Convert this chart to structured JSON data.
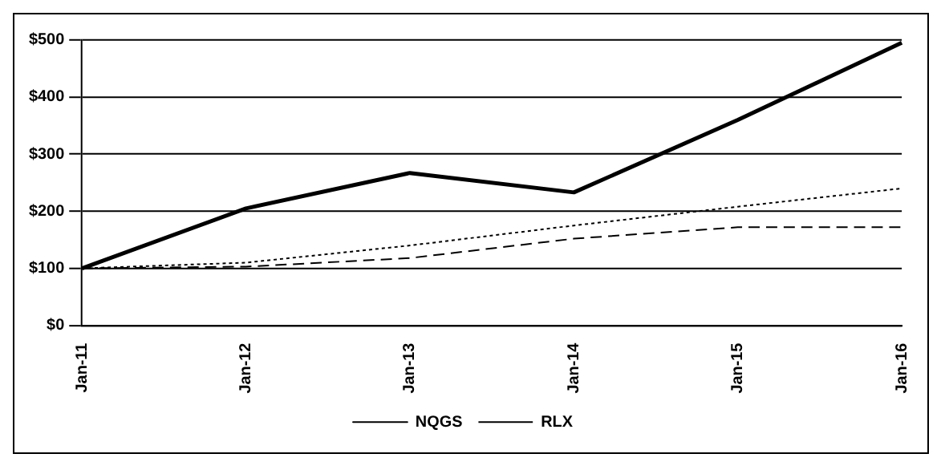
{
  "chart_data": {
    "type": "line",
    "categories": [
      "Jan-11",
      "Jan-12",
      "Jan-13",
      "Jan-14",
      "Jan-15",
      "Jan-16"
    ],
    "series": [
      {
        "color": "#000000",
        "line_style": "solid",
        "values": [
          100,
          205,
          267,
          233,
          360,
          495
        ]
      },
      {
        "name": "NQGS",
        "color": "#000000",
        "line_style": "dashed",
        "values": [
          100,
          103,
          118,
          152,
          172,
          172
        ]
      },
      {
        "name": "RLX",
        "color": "#000000",
        "line_style": "dotted",
        "values": [
          100,
          110,
          140,
          175,
          208,
          240
        ]
      }
    ],
    "ylim": [
      0,
      500
    ],
    "yticks": [
      {
        "value": 0,
        "label": "$0"
      },
      {
        "value": 100,
        "label": "$100"
      },
      {
        "value": 200,
        "label": "$200"
      },
      {
        "value": 300,
        "label": "$300"
      },
      {
        "value": 400,
        "label": "$400"
      },
      {
        "value": 500,
        "label": "$500"
      }
    ],
    "grid": "y",
    "legend": "bottom",
    "marker": "none"
  }
}
